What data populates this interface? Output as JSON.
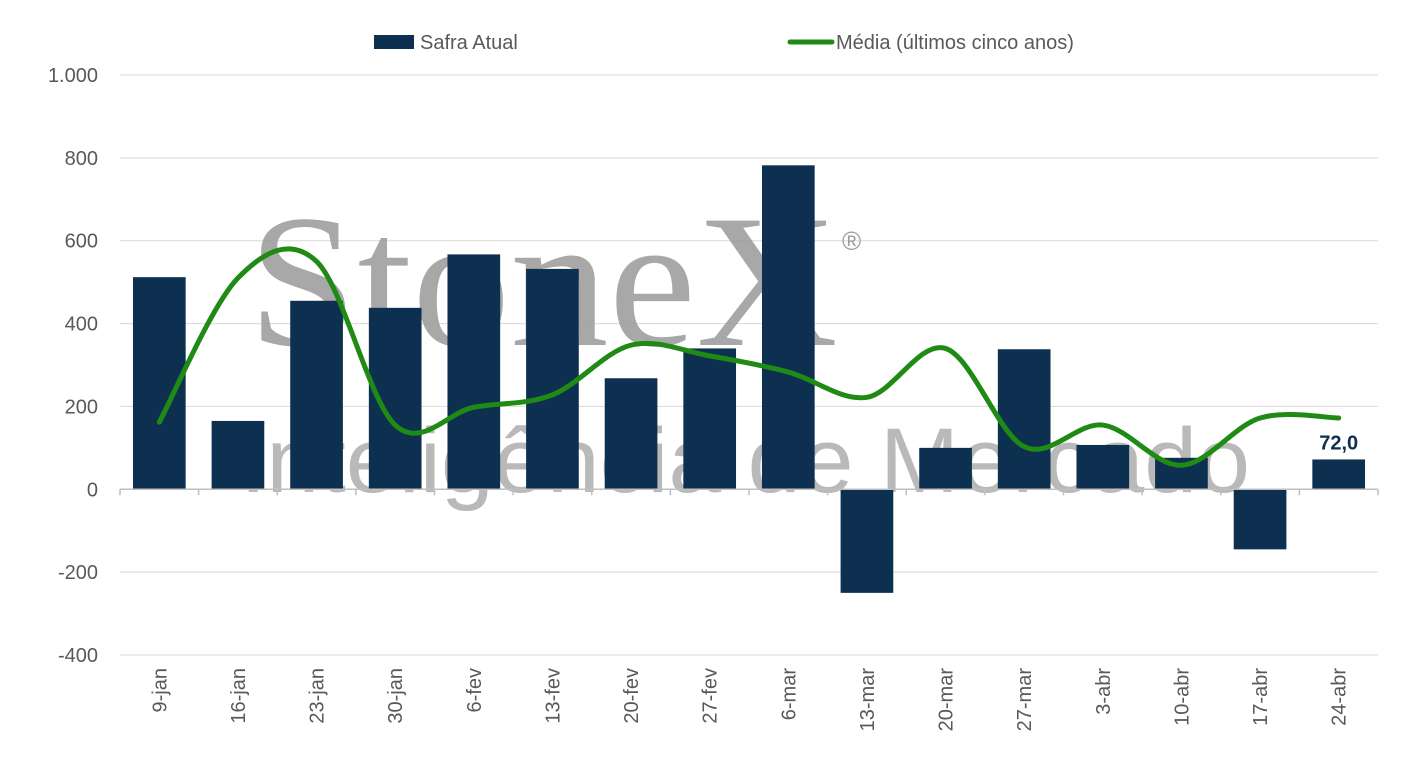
{
  "watermark": {
    "brand": "StoneX",
    "registered": "®",
    "tagline": "Inteligência de Mercado"
  },
  "chart_data": {
    "type": "bar",
    "categories": [
      "9-jan",
      "16-jan",
      "23-jan",
      "30-jan",
      "6-fev",
      "13-fev",
      "20-fev",
      "27-fev",
      "6-mar",
      "13-mar",
      "20-mar",
      "27-mar",
      "3-abr",
      "10-abr",
      "17-abr",
      "24-abr"
    ],
    "series": [
      {
        "name": "Safra Atual",
        "type": "bar",
        "color": "#0d3050",
        "values": [
          512,
          165,
          455,
          438,
          567,
          532,
          268,
          340,
          782,
          -250,
          100,
          338,
          107,
          76,
          -145,
          72
        ]
      },
      {
        "name": "Média (últimos cinco anos)",
        "type": "line",
        "color": "#1f8a14",
        "values": [
          162,
          510,
          550,
          155,
          198,
          228,
          348,
          322,
          283,
          222,
          340,
          103,
          155,
          58,
          172,
          172
        ]
      }
    ],
    "ylim": [
      -400,
      1000
    ],
    "yticks": [
      -400,
      -200,
      0,
      200,
      400,
      600,
      800,
      1000
    ],
    "ytick_labels": [
      "-400",
      "-200",
      "0",
      "200",
      "400",
      "600",
      "800",
      "1.000"
    ],
    "data_labels": [
      {
        "category": "24-abr",
        "text": "72,0"
      }
    ],
    "grid": "horizontal",
    "legend": "top",
    "title": "",
    "xlabel": "",
    "ylabel": ""
  }
}
